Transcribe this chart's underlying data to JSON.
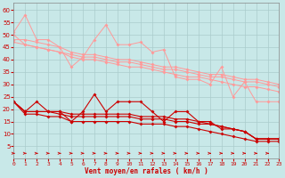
{
  "x": [
    0,
    1,
    2,
    3,
    4,
    5,
    6,
    7,
    8,
    9,
    10,
    11,
    12,
    13,
    14,
    15,
    16,
    17,
    18,
    19,
    20,
    21,
    22,
    23
  ],
  "line1_y": [
    51,
    58,
    48,
    48,
    45,
    37,
    41,
    48,
    54,
    46,
    46,
    47,
    43,
    44,
    33,
    32,
    32,
    30,
    37,
    25,
    31,
    23,
    23,
    23
  ],
  "line2_y": [
    48,
    48,
    47,
    46,
    45,
    43,
    42,
    42,
    41,
    40,
    40,
    39,
    38,
    37,
    37,
    36,
    35,
    34,
    34,
    33,
    32,
    32,
    31,
    30
  ],
  "line3_y": [
    47,
    46,
    45,
    44,
    43,
    42,
    41,
    41,
    40,
    39,
    39,
    38,
    37,
    36,
    36,
    35,
    34,
    33,
    33,
    32,
    31,
    31,
    30,
    29
  ],
  "line4_y": [
    50,
    46,
    45,
    44,
    43,
    41,
    40,
    40,
    39,
    38,
    37,
    37,
    36,
    35,
    34,
    33,
    33,
    32,
    31,
    30,
    29,
    29,
    28,
    27
  ],
  "line5_y": [
    23,
    19,
    23,
    19,
    19,
    15,
    19,
    26,
    19,
    23,
    23,
    23,
    19,
    15,
    19,
    19,
    15,
    15,
    12,
    12,
    11,
    8,
    8,
    8
  ],
  "line6_y": [
    23,
    19,
    19,
    19,
    19,
    18,
    18,
    18,
    18,
    18,
    18,
    17,
    17,
    17,
    16,
    16,
    15,
    14,
    13,
    12,
    11,
    8,
    8,
    8
  ],
  "line7_y": [
    23,
    19,
    19,
    19,
    18,
    17,
    17,
    17,
    17,
    17,
    17,
    16,
    16,
    16,
    15,
    15,
    14,
    14,
    13,
    12,
    11,
    8,
    8,
    8
  ],
  "line8_y": [
    23,
    18,
    18,
    17,
    17,
    15,
    15,
    15,
    15,
    15,
    15,
    14,
    14,
    14,
    13,
    13,
    12,
    11,
    10,
    9,
    8,
    7,
    7,
    7
  ],
  "background_color": "#c8e8e8",
  "grid_color": "#aacccc",
  "xlabel": "Vent moyen/en rafales ( km/h )",
  "xlabel_color": "#cc0000",
  "tick_color": "#cc0000",
  "arrow_color": "#cc0000",
  "ylim": [
    0,
    63
  ],
  "xlim": [
    0,
    23
  ],
  "yticks": [
    5,
    10,
    15,
    20,
    25,
    30,
    35,
    40,
    45,
    50,
    55,
    60
  ],
  "line_light_color": "#ff9999",
  "line_dark_color": "#cc0000",
  "markersize": 2.0
}
